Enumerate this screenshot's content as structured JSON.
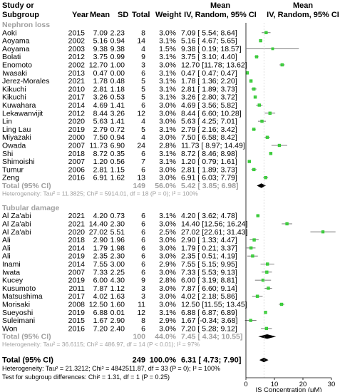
{
  "header": {
    "study_line1": "Study or",
    "study_line2": "Subgroup",
    "year": "Year",
    "mean": "Mean",
    "sd": "SD",
    "total": "Total",
    "weight": "Weight",
    "effect_line1": "Mean",
    "effect_line2": "IV, Random, 95% CI",
    "plot_line1": "Mean",
    "plot_line2": "IV, Random, 95% CI"
  },
  "groups": [
    {
      "name": "Nephron loss",
      "studies": [
        {
          "study": "Aoki",
          "year": "2015",
          "mean": "7.09",
          "sd": "2.23",
          "total": "8",
          "weight": "3.0%",
          "ci_text": "7.09 [ 5.54; 8.64]",
          "est": 7.09,
          "lo": 5.54,
          "hi": 8.64
        },
        {
          "study": "Aoyama",
          "year": "2002",
          "mean": "5.16",
          "sd": "0.94",
          "total": "14",
          "weight": "3.1%",
          "ci_text": "5.16 [ 4.67; 5.65]",
          "est": 5.16,
          "lo": 4.67,
          "hi": 5.65
        },
        {
          "study": "Aoyama",
          "year": "2003",
          "mean": "9.38",
          "sd": "9.38",
          "total": "4",
          "weight": "1.5%",
          "ci_text": "9.38 [ 0.19; 18.57]",
          "est": 9.38,
          "lo": 0.19,
          "hi": 18.57
        },
        {
          "study": "Bolati",
          "year": "2012",
          "mean": "3.75",
          "sd": "0.99",
          "total": "9",
          "weight": "3.1%",
          "ci_text": "3.75 [ 3.10; 4.40]",
          "est": 3.75,
          "lo": 3.1,
          "hi": 4.4
        },
        {
          "study": "Enomoto",
          "year": "2002",
          "mean": "12.70",
          "sd": "1.00",
          "total": "3",
          "weight": "3.0%",
          "ci_text": "12.70 [11.78; 13.62]",
          "est": 12.7,
          "lo": 11.78,
          "hi": 13.62
        },
        {
          "study": "Iwasaki",
          "year": "2013",
          "mean": "0.47",
          "sd": "0.00",
          "total": "6",
          "weight": "3.1%",
          "ci_text": "0.47 [ 0.47; 0.47]",
          "est": 0.47,
          "lo": 0.47,
          "hi": 0.47
        },
        {
          "study": "Jerez-Morales",
          "year": "2021",
          "mean": "1.78",
          "sd": "0.48",
          "total": "5",
          "weight": "3.1%",
          "ci_text": "1.78 [ 1.36; 2.20]",
          "est": 1.78,
          "lo": 1.36,
          "hi": 2.2
        },
        {
          "study": "Kikuchi",
          "year": "2010",
          "mean": "2.81",
          "sd": "1.18",
          "total": "5",
          "weight": "3.1%",
          "ci_text": "2.81 [ 1.89; 3.73]",
          "est": 2.81,
          "lo": 1.89,
          "hi": 3.73
        },
        {
          "study": "Kikuchi",
          "year": "2017",
          "mean": "3.26",
          "sd": "0.53",
          "total": "5",
          "weight": "3.1%",
          "ci_text": "3.26 [ 2.80; 3.72]",
          "est": 3.26,
          "lo": 2.8,
          "hi": 3.72
        },
        {
          "study": "Kuwahara",
          "year": "2014",
          "mean": "4.69",
          "sd": "1.41",
          "total": "6",
          "weight": "3.0%",
          "ci_text": "4.69 [ 3.56; 5.82]",
          "est": 4.69,
          "lo": 3.56,
          "hi": 5.82
        },
        {
          "study": "Lekawanvijit",
          "year": "2012",
          "mean": "8.44",
          "sd": "3.26",
          "total": "12",
          "weight": "3.0%",
          "ci_text": "8.44 [ 6.60; 10.28]",
          "est": 8.44,
          "lo": 6.6,
          "hi": 10.28
        },
        {
          "study": "Lin",
          "year": "2020",
          "mean": "5.63",
          "sd": "1.41",
          "total": "4",
          "weight": "3.0%",
          "ci_text": "5.63 [ 4.25; 7.01]",
          "est": 5.63,
          "lo": 4.25,
          "hi": 7.01
        },
        {
          "study": "Ling Lau",
          "year": "2019",
          "mean": "2.79",
          "sd": "0.72",
          "total": "5",
          "weight": "3.1%",
          "ci_text": "2.79 [ 2.16; 3.42]",
          "est": 2.79,
          "lo": 2.16,
          "hi": 3.42
        },
        {
          "study": "Miyazaki",
          "year": "2000",
          "mean": "7.50",
          "sd": "0.94",
          "total": "4",
          "weight": "3.0%",
          "ci_text": "7.50 [ 6.58; 8.42]",
          "est": 7.5,
          "lo": 6.58,
          "hi": 8.42
        },
        {
          "study": "Owada",
          "year": "2007",
          "mean": "11.73",
          "sd": "6.90",
          "total": "24",
          "weight": "2.8%",
          "ci_text": "11.73 [ 8.97; 14.49]",
          "est": 11.73,
          "lo": 8.97,
          "hi": 14.49
        },
        {
          "study": "Shi",
          "year": "2018",
          "mean": "8.72",
          "sd": "0.35",
          "total": "6",
          "weight": "3.1%",
          "ci_text": "8.72 [ 8.46; 8.98]",
          "est": 8.72,
          "lo": 8.46,
          "hi": 8.98
        },
        {
          "study": "Shimoishi",
          "year": "2007",
          "mean": "1.20",
          "sd": "0.56",
          "total": "7",
          "weight": "3.1%",
          "ci_text": "1.20 [ 0.79; 1.61]",
          "est": 1.2,
          "lo": 0.79,
          "hi": 1.61
        },
        {
          "study": "Tumur",
          "year": "2006",
          "mean": "2.81",
          "sd": "1.15",
          "total": "6",
          "weight": "3.0%",
          "ci_text": "2.81 [ 1.89; 3.73]",
          "est": 2.81,
          "lo": 1.89,
          "hi": 3.73
        },
        {
          "study": "Zeng",
          "year": "2016",
          "mean": "6.91",
          "sd": "1.62",
          "total": "13",
          "weight": "3.0%",
          "ci_text": "6.91 [ 6.03; 7.79]",
          "est": 6.91,
          "lo": 6.03,
          "hi": 7.79
        }
      ],
      "total": {
        "label": "Total (95% CI)",
        "n": "149",
        "weight": "56.0%",
        "ci_text": "5.42 [ 3.85; 6.98]",
        "est": 5.42,
        "lo": 3.85,
        "hi": 6.98
      },
      "heterogeneity": "Heterogeneity: Tau² = 11.3825; Chi² = 5914.01, df = 18 (P = 0); I² = 100%"
    },
    {
      "name": "Tubular damage",
      "studies": [
        {
          "study": "Al Za'abi",
          "year": "2021",
          "mean": "4.20",
          "sd": "0.73",
          "total": "6",
          "weight": "3.1%",
          "ci_text": "4.20 [ 3.62; 4.78]",
          "est": 4.2,
          "lo": 3.62,
          "hi": 4.78
        },
        {
          "study": "Al Za'abi",
          "year": "2021",
          "mean": "14.40",
          "sd": "2.30",
          "total": "6",
          "weight": "3.0%",
          "ci_text": "14.40 [12.56; 16.24]",
          "est": 14.4,
          "lo": 12.56,
          "hi": 16.24
        },
        {
          "study": "Al Za'abi",
          "year": "2020",
          "mean": "27.02",
          "sd": "5.51",
          "total": "6",
          "weight": "2.5%",
          "ci_text": "27.02 [22.61; 31.43]",
          "est": 27.02,
          "lo": 22.61,
          "hi": 31.43
        },
        {
          "study": "Ali",
          "year": "2018",
          "mean": "2.90",
          "sd": "1.96",
          "total": "6",
          "weight": "3.0%",
          "ci_text": "2.90 [ 1.33; 4.47]",
          "est": 2.9,
          "lo": 1.33,
          "hi": 4.47
        },
        {
          "study": "Ali",
          "year": "2014",
          "mean": "1.79",
          "sd": "1.98",
          "total": "6",
          "weight": "3.0%",
          "ci_text": "1.79 [ 0.21; 3.37]",
          "est": 1.79,
          "lo": 0.21,
          "hi": 3.37
        },
        {
          "study": "Ali",
          "year": "2019",
          "mean": "2.35",
          "sd": "2.30",
          "total": "6",
          "weight": "3.0%",
          "ci_text": "2.35 [ 0.51; 4.19]",
          "est": 2.35,
          "lo": 0.51,
          "hi": 4.19
        },
        {
          "study": "Inami",
          "year": "2014",
          "mean": "7.55",
          "sd": "3.00",
          "total": "6",
          "weight": "2.9%",
          "ci_text": "7.55 [ 5.15; 9.95]",
          "est": 7.55,
          "lo": 5.15,
          "hi": 9.95
        },
        {
          "study": "Iwata",
          "year": "2007",
          "mean": "7.33",
          "sd": "2.25",
          "total": "6",
          "weight": "3.0%",
          "ci_text": "7.33 [ 5.53; 9.13]",
          "est": 7.33,
          "lo": 5.53,
          "hi": 9.13
        },
        {
          "study": "Kucey",
          "year": "2019",
          "mean": "6.00",
          "sd": "4.30",
          "total": "9",
          "weight": "2.8%",
          "ci_text": "6.00 [ 3.19; 8.81]",
          "est": 6.0,
          "lo": 3.19,
          "hi": 8.81
        },
        {
          "study": "Kusumoto",
          "year": "2011",
          "mean": "7.87",
          "sd": "1.12",
          "total": "3",
          "weight": "3.0%",
          "ci_text": "7.87 [ 6.60; 9.14]",
          "est": 7.87,
          "lo": 6.6,
          "hi": 9.14
        },
        {
          "study": "Matsushima",
          "year": "2017",
          "mean": "4.02",
          "sd": "1.63",
          "total": "3",
          "weight": "3.0%",
          "ci_text": "4.02 [ 2.18; 5.86]",
          "est": 4.02,
          "lo": 2.18,
          "hi": 5.86
        },
        {
          "study": "Morisaki",
          "year": "2008",
          "mean": "12.50",
          "sd": "1.60",
          "total": "11",
          "weight": "3.0%",
          "ci_text": "12.50 [11.55; 13.45]",
          "est": 12.5,
          "lo": 11.55,
          "hi": 13.45
        },
        {
          "study": "Sueyoshi",
          "year": "2019",
          "mean": "6.88",
          "sd": "0.01",
          "total": "12",
          "weight": "3.1%",
          "ci_text": "6.88 [ 6.87; 6.89]",
          "est": 6.88,
          "lo": 6.87,
          "hi": 6.89
        },
        {
          "study": "Suleimani",
          "year": "2015",
          "mean": "1.67",
          "sd": "2.90",
          "total": "8",
          "weight": "2.9%",
          "ci_text": "1.67 [-0.34; 3.68]",
          "est": 1.67,
          "lo": -0.34,
          "hi": 3.68
        },
        {
          "study": "Won",
          "year": "2016",
          "mean": "7.20",
          "sd": "2.40",
          "total": "6",
          "weight": "3.0%",
          "ci_text": "7.20 [ 5.28; 9.12]",
          "est": 7.2,
          "lo": 5.28,
          "hi": 9.12
        }
      ],
      "total": {
        "label": "Total (95% CI)",
        "n": "100",
        "weight": "44.0%",
        "ci_text": "7.45 [ 4.34; 10.55]",
        "est": 7.45,
        "lo": 4.34,
        "hi": 10.55
      },
      "heterogeneity": "Heterogeneity: Tau² = 36.6115; Chi² = 486.97, df = 14 (P < 0.01); I² = 97%"
    }
  ],
  "overall": {
    "label": "Total (95% CI)",
    "n": "249",
    "weight": "100.0%",
    "ci_text": "6.31 [ 4.73; 7.90]",
    "est": 6.31,
    "lo": 4.73,
    "hi": 7.9,
    "heterogeneity": "Heterogeneity: Tau² = 21.3212; Chi² = 4842511.87, df = 33 (P = 0); I² = 100%",
    "subgroup_test": "Test for subgroup differences: Chi² = 1.31, df = 1 (P = 0.25)"
  },
  "chart_data": {
    "type": "forest",
    "xlabel": "IS Concentration (μM)",
    "xlim": [
      0,
      30
    ],
    "xticks": [
      "0",
      "10",
      "20",
      "30"
    ],
    "marker_color": "#33cc33",
    "series": [
      {
        "name": "Nephron loss",
        "est": [
          7.09,
          5.16,
          9.38,
          3.75,
          12.7,
          0.47,
          1.78,
          2.81,
          3.26,
          4.69,
          8.44,
          5.63,
          2.79,
          7.5,
          11.73,
          8.72,
          1.2,
          2.81,
          6.91
        ],
        "pooled": 5.42
      },
      {
        "name": "Tubular damage",
        "est": [
          4.2,
          14.4,
          27.02,
          2.9,
          1.79,
          2.35,
          7.55,
          7.33,
          6.0,
          7.87,
          4.02,
          12.5,
          6.88,
          1.67,
          7.2
        ],
        "pooled": 7.45
      }
    ],
    "overall": 6.31
  },
  "colors": {
    "marker": "#33cc33",
    "gray_text": "#a0a0a0",
    "grid": "#c8c8c8"
  }
}
